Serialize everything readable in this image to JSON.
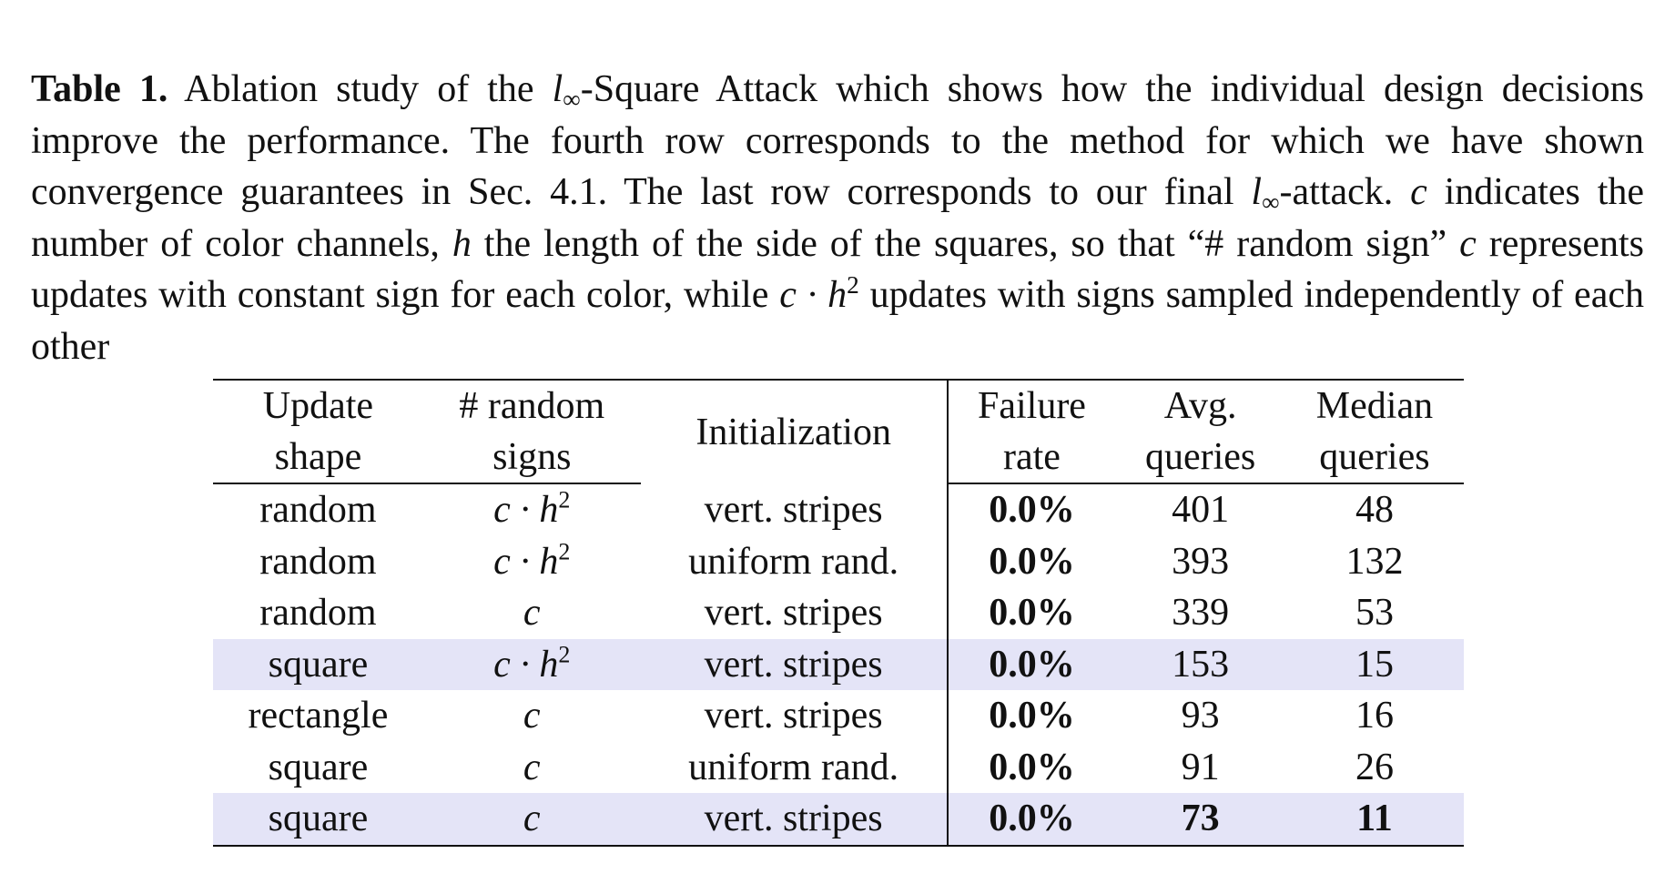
{
  "caption": {
    "label": "Table 1.",
    "text_1": " Ablation study of the ",
    "linf_l": "l",
    "linf_sub": "∞",
    "text_2": "-Square Attack which shows how the individual design decisions improve the performance. The fourth row corresponds to the method for which we have shown convergence guarantees in Sec. 4.1. The last row corresponds to our final ",
    "text_3": "-attack. ",
    "var_c": "c",
    "text_4": " indicates the number of color channels, ",
    "var_h": "h",
    "text_5": " the length of the side of the squares, so that “# random sign” ",
    "text_6": " represents updates with constant sign for each color, while ",
    "expr": "c · h",
    "exp": "2",
    "text_7": " updates with signs sampled independently of each other"
  },
  "table": {
    "headers": [
      [
        "Update",
        "shape"
      ],
      [
        "# random",
        "signs"
      ],
      [
        "Initialization"
      ],
      [
        "Failure",
        "rate"
      ],
      [
        "Avg.",
        "queries"
      ],
      [
        "Median",
        "queries"
      ]
    ],
    "rows": [
      {
        "shape": "random",
        "signs": "c · h",
        "signs_exp": "2",
        "init": "vert. stripes",
        "failure": "0.0%",
        "avg": "401",
        "median": "48",
        "highlight": false,
        "bold_avg": false,
        "bold_median": false
      },
      {
        "shape": "random",
        "signs": "c · h",
        "signs_exp": "2",
        "init": "uniform rand.",
        "failure": "0.0%",
        "avg": "393",
        "median": "132",
        "highlight": false,
        "bold_avg": false,
        "bold_median": false
      },
      {
        "shape": "random",
        "signs": "c",
        "signs_exp": "",
        "init": "vert. stripes",
        "failure": "0.0%",
        "avg": "339",
        "median": "53",
        "highlight": false,
        "bold_avg": false,
        "bold_median": false
      },
      {
        "shape": "square",
        "signs": "c · h",
        "signs_exp": "2",
        "init": "vert. stripes",
        "failure": "0.0%",
        "avg": "153",
        "median": "15",
        "highlight": true,
        "bold_avg": false,
        "bold_median": false
      },
      {
        "shape": "rectangle",
        "signs": "c",
        "signs_exp": "",
        "init": "vert. stripes",
        "failure": "0.0%",
        "avg": "93",
        "median": "16",
        "highlight": false,
        "bold_avg": false,
        "bold_median": false
      },
      {
        "shape": "square",
        "signs": "c",
        "signs_exp": "",
        "init": "uniform rand.",
        "failure": "0.0%",
        "avg": "91",
        "median": "26",
        "highlight": false,
        "bold_avg": false,
        "bold_median": false
      },
      {
        "shape": "square",
        "signs": "c",
        "signs_exp": "",
        "init": "vert. stripes",
        "failure": "0.0%",
        "avg": "73",
        "median": "11",
        "highlight": true,
        "bold_avg": true,
        "bold_median": true
      }
    ],
    "highlight_color": "#e4e4f7"
  }
}
